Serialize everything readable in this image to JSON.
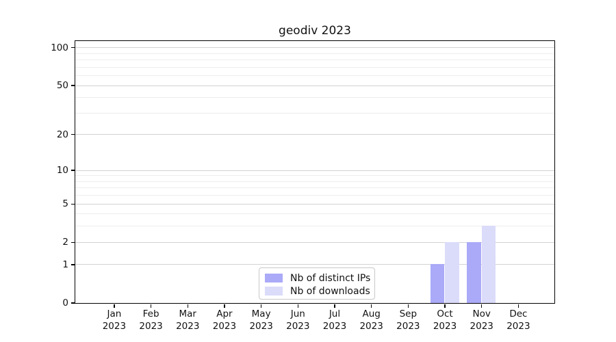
{
  "title": "geodiv 2023",
  "chart_data": {
    "type": "bar",
    "title": "geodiv 2023",
    "categories": [
      "Jan",
      "Feb",
      "Mar",
      "Apr",
      "May",
      "Jun",
      "Jul",
      "Aug",
      "Sep",
      "Oct",
      "Nov",
      "Dec"
    ],
    "category_year": "2023",
    "series": [
      {
        "name": "Nb of distinct IPs",
        "color": "#aaaaf8",
        "values": [
          0,
          0,
          0,
          0,
          0,
          0,
          0,
          0,
          0,
          1,
          2,
          0
        ]
      },
      {
        "name": "Nb of downloads",
        "color": "#dbdbfa",
        "values": [
          0,
          0,
          0,
          0,
          0,
          0,
          0,
          0,
          0,
          2,
          3,
          0
        ]
      }
    ],
    "xlabel": "",
    "ylabel": "",
    "y_scale": "log1p",
    "y_major_ticks": [
      0,
      1,
      2,
      5,
      10,
      20,
      50,
      100
    ],
    "y_minor_ticks": [
      3,
      4,
      6,
      7,
      8,
      9,
      30,
      40,
      60,
      70,
      80,
      90
    ],
    "ylim": [
      0,
      113
    ],
    "xlim": [
      -1.06,
      11.98
    ],
    "grid": "both",
    "grid_major_color": "#d2d2d2",
    "grid_minor_color": "#ededed",
    "spine_color": "#000000",
    "legend_position": "lower center",
    "legend_entries": [
      "Nb of distinct IPs",
      "Nb of downloads"
    ]
  }
}
